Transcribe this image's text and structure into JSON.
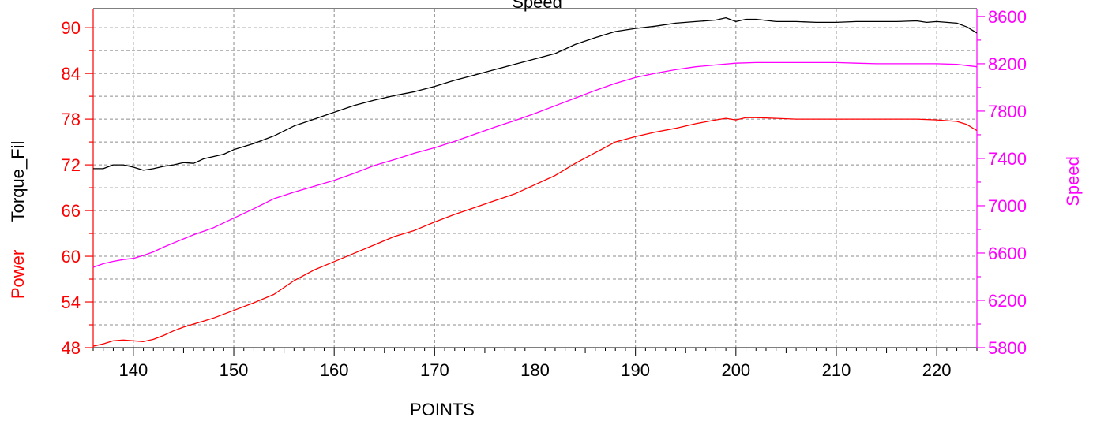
{
  "chart_data": {
    "type": "line",
    "title": "Speed",
    "xlabel": "POINTS",
    "x_range": [
      136,
      224
    ],
    "x_ticks": [
      140,
      150,
      160,
      170,
      180,
      190,
      200,
      210,
      220
    ],
    "grid": true,
    "axes": {
      "left": {
        "range": [
          48,
          92.5
        ],
        "ticks": [
          48,
          54,
          60,
          66,
          72,
          78,
          84,
          90
        ],
        "labels": [
          {
            "text": "Power",
            "color": "#ff0000"
          },
          {
            "text": "Torque_Fil",
            "color": "#000000"
          }
        ],
        "tick_color": "#ff0000"
      },
      "right": {
        "range": [
          5800,
          8666
        ],
        "ticks": [
          5800,
          6200,
          6600,
          7000,
          7400,
          7800,
          8200,
          8600
        ],
        "label": "Speed",
        "tick_color": "#ff00ff"
      }
    },
    "series": [
      {
        "name": "Torque_Fil",
        "axis": "left",
        "color": "#000000",
        "x": [
          136,
          137,
          138,
          139,
          140,
          141,
          142,
          143,
          144,
          145,
          146,
          147,
          148,
          149,
          150,
          152,
          154,
          156,
          158,
          160,
          162,
          164,
          166,
          168,
          170,
          172,
          174,
          176,
          178,
          180,
          182,
          184,
          186,
          188,
          190,
          192,
          194,
          196,
          198,
          199,
          200,
          201,
          202,
          204,
          206,
          208,
          210,
          212,
          214,
          216,
          218,
          219,
          220,
          222,
          223,
          224
        ],
        "y": [
          71.5,
          71.5,
          72.0,
          72.0,
          71.7,
          71.3,
          71.5,
          71.8,
          72.0,
          72.3,
          72.2,
          72.8,
          73.1,
          73.4,
          74.0,
          74.8,
          75.8,
          77.1,
          78.0,
          78.9,
          79.8,
          80.5,
          81.1,
          81.6,
          82.3,
          83.1,
          83.8,
          84.5,
          85.2,
          85.9,
          86.6,
          87.8,
          88.7,
          89.5,
          89.9,
          90.2,
          90.6,
          90.8,
          91.0,
          91.3,
          90.8,
          91.1,
          91.1,
          90.8,
          90.8,
          90.7,
          90.7,
          90.8,
          90.8,
          90.8,
          90.9,
          90.7,
          90.8,
          90.6,
          90.1,
          89.3
        ]
      },
      {
        "name": "Speed",
        "axis": "right",
        "color": "#ff00ff",
        "x": [
          136,
          137,
          138,
          139,
          140,
          141,
          142,
          143,
          144,
          145,
          146,
          147,
          148,
          150,
          152,
          154,
          156,
          158,
          160,
          162,
          164,
          166,
          168,
          170,
          172,
          174,
          176,
          178,
          180,
          182,
          184,
          186,
          188,
          190,
          192,
          194,
          196,
          198,
          200,
          202,
          204,
          206,
          208,
          210,
          212,
          214,
          216,
          218,
          220,
          222,
          223,
          224
        ],
        "y": [
          6480,
          6510,
          6530,
          6545,
          6555,
          6580,
          6610,
          6650,
          6685,
          6720,
          6755,
          6785,
          6815,
          6895,
          6975,
          7060,
          7115,
          7165,
          7215,
          7275,
          7340,
          7390,
          7445,
          7490,
          7545,
          7605,
          7665,
          7720,
          7780,
          7845,
          7910,
          7975,
          8035,
          8085,
          8120,
          8150,
          8175,
          8190,
          8205,
          8210,
          8210,
          8210,
          8210,
          8210,
          8205,
          8200,
          8200,
          8200,
          8200,
          8195,
          8185,
          8175
        ]
      },
      {
        "name": "Power",
        "axis": "left",
        "color": "#ff0000",
        "x": [
          136,
          137,
          138,
          139,
          140,
          141,
          142,
          143,
          144,
          145,
          146,
          147,
          148,
          150,
          152,
          154,
          156,
          158,
          160,
          162,
          164,
          166,
          168,
          170,
          172,
          174,
          176,
          178,
          180,
          182,
          184,
          186,
          188,
          190,
          192,
          194,
          196,
          198,
          199,
          200,
          201,
          202,
          204,
          206,
          208,
          210,
          212,
          214,
          216,
          218,
          220,
          222,
          223,
          224
        ],
        "y": [
          48.2,
          48.5,
          48.9,
          49.0,
          48.9,
          48.8,
          49.1,
          49.6,
          50.2,
          50.7,
          51.1,
          51.5,
          51.9,
          52.9,
          53.9,
          55.0,
          56.8,
          58.2,
          59.3,
          60.4,
          61.5,
          62.6,
          63.4,
          64.5,
          65.5,
          66.4,
          67.3,
          68.2,
          69.4,
          70.6,
          72.2,
          73.6,
          75.0,
          75.7,
          76.3,
          76.8,
          77.4,
          77.9,
          78.1,
          77.9,
          78.2,
          78.2,
          78.1,
          78.0,
          78.0,
          78.0,
          78.0,
          78.0,
          78.0,
          78.0,
          77.9,
          77.7,
          77.3,
          76.5
        ]
      }
    ]
  }
}
